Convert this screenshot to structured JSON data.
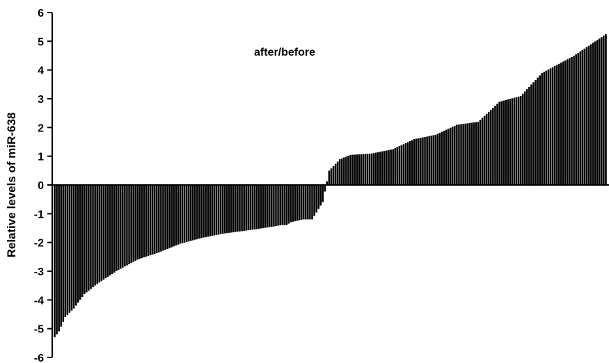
{
  "chart_data": {
    "type": "bar",
    "title": "",
    "annotation": "after/before",
    "xlabel": "",
    "ylabel": "Relative levels of miR-638",
    "ylim": [
      -6,
      6
    ],
    "yticks": [
      6,
      5,
      4,
      3,
      2,
      1,
      0,
      -1,
      -2,
      -3,
      -4,
      -5,
      -6
    ],
    "ytick_labels": [
      "6",
      "5",
      "4",
      "3",
      "2",
      "1",
      "0",
      "-1",
      "-2",
      "-3",
      "-4",
      "-5",
      "-6"
    ],
    "grid": false,
    "legend": "none",
    "bar_color": "#000000",
    "bar_edge_color": "#ffffff",
    "n_samples": 260,
    "sorted_profile": {
      "sample_rank": [
        1,
        3,
        6,
        10,
        15,
        20,
        30,
        40,
        50,
        60,
        70,
        80,
        95,
        110,
        104,
        106,
        108,
        112,
        118,
        122,
        127,
        130,
        135,
        140,
        150,
        160,
        170,
        180,
        190,
        200,
        210,
        220,
        230,
        245,
        255,
        260
      ],
      "value": [
        -5.3,
        -5.1,
        -4.6,
        -4.3,
        -3.8,
        -3.5,
        -3.0,
        -2.6,
        -2.35,
        -2.05,
        -1.85,
        -1.7,
        -1.55,
        -1.4,
        -1.45,
        -1.42,
        -1.4,
        -1.3,
        -1.2,
        -1.2,
        -0.6,
        0.5,
        0.9,
        1.05,
        1.1,
        1.25,
        1.6,
        1.75,
        2.1,
        2.2,
        2.9,
        3.1,
        3.9,
        4.5,
        5.0,
        5.25
      ]
    }
  }
}
